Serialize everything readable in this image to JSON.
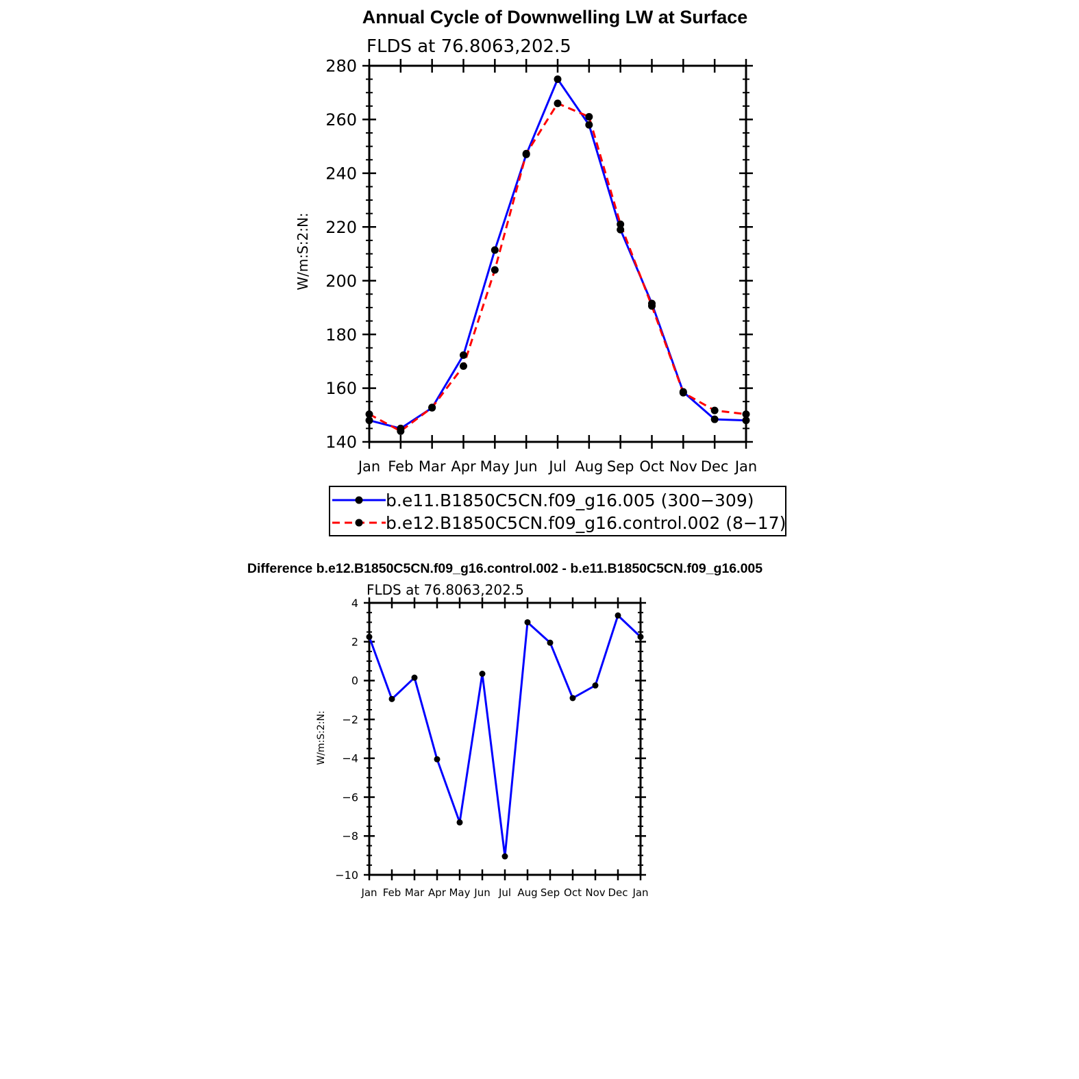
{
  "chart_data": [
    {
      "type": "line",
      "title": "Annual Cycle of Downwelling LW at Surface",
      "subtitle": "FLDS at 76.8063,202.5",
      "ylabel": "W/m:S:2:N:",
      "xlabel": "",
      "categories": [
        "Jan",
        "Feb",
        "Mar",
        "Apr",
        "May",
        "Jun",
        "Jul",
        "Aug",
        "Sep",
        "Oct",
        "Nov",
        "Dec",
        "Jan"
      ],
      "ylim": [
        140,
        280
      ],
      "yticks": [
        140,
        160,
        180,
        200,
        220,
        240,
        260,
        280
      ],
      "legend_position": "bottom",
      "series": [
        {
          "name": "b.e11.B1850C5CN.f09_g16.005 (300−309)",
          "color": "#0000ff",
          "dash": "solid",
          "values": [
            148.0,
            145.0,
            152.7,
            172.3,
            211.4,
            247.0,
            275.0,
            258.0,
            219.0,
            191.5,
            158.6,
            148.4,
            148.0
          ]
        },
        {
          "name": "b.e12.B1850C5CN.f09_g16.control.002 (8−17)",
          "color": "#ff0000",
          "dash": "dashed",
          "values": [
            150.3,
            144.0,
            152.8,
            168.2,
            204.0,
            247.3,
            266.0,
            261.0,
            221.0,
            190.6,
            158.3,
            151.7,
            150.3
          ]
        }
      ]
    },
    {
      "type": "line",
      "title": "Difference b.e12.B1850C5CN.f09_g16.control.002 - b.e11.B1850C5CN.f09_g16.005",
      "subtitle": "FLDS at 76.8063,202.5",
      "ylabel": "W/m:S:2:N:",
      "xlabel": "",
      "categories": [
        "Jan",
        "Feb",
        "Mar",
        "Apr",
        "May",
        "Jun",
        "Jul",
        "Aug",
        "Sep",
        "Oct",
        "Nov",
        "Dec",
        "Jan"
      ],
      "ylim": [
        -10,
        4
      ],
      "yticks": [
        -10,
        -8,
        -6,
        -4,
        -2,
        0,
        2,
        4
      ],
      "ytick_labels": [
        "−10",
        "−8",
        "−6",
        "−4",
        "−2",
        "0",
        "2",
        "4"
      ],
      "series": [
        {
          "color": "#0000ff",
          "dash": "solid",
          "values": [
            2.25,
            -0.95,
            0.15,
            -4.05,
            -7.3,
            0.35,
            -9.05,
            3.0,
            1.95,
            -0.9,
            -0.25,
            3.35,
            2.25
          ]
        }
      ]
    }
  ]
}
